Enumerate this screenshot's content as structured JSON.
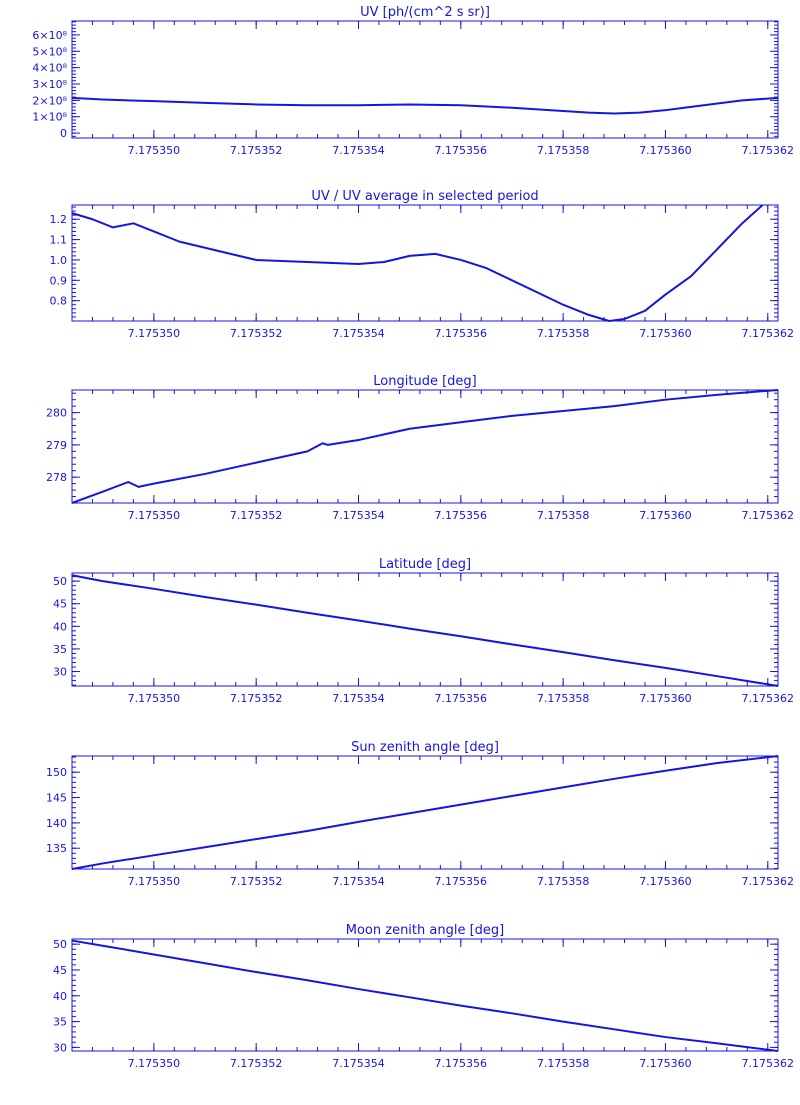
{
  "colors": {
    "plot": "#1515e0",
    "background": "#ffffff"
  },
  "chart_data": [
    {
      "type": "line",
      "title": "UV [ph/(cm^2 s sr)]",
      "xlim": [
        7.1753484,
        7.1753622
      ],
      "ylim": [
        -0.3,
        6.85
      ],
      "x_ticks": [
        7.17535,
        7.175352,
        7.175354,
        7.175356,
        7.175358,
        7.17536,
        7.175362
      ],
      "x_ticklabels": [
        "7.175350",
        "7.175352",
        "7.175354",
        "7.175356",
        "7.175358",
        "7.175360",
        "7.175362"
      ],
      "y_ticks": [
        0,
        1,
        2,
        3,
        4,
        5,
        6
      ],
      "y_ticklabels": [
        "0",
        "1×10⁸",
        "2×10⁸",
        "3×10⁸",
        "4×10⁸",
        "5×10⁸",
        "6×10⁸"
      ],
      "y_unit_scale": "1e8",
      "series": [
        {
          "x": [
            7.1753484,
            7.175349,
            7.17535,
            7.175351,
            7.175352,
            7.175353,
            7.175354,
            7.175355,
            7.175356,
            7.175357,
            7.175358,
            7.1753585,
            7.175359,
            7.1753595,
            7.17536,
            7.1753605,
            7.175361,
            7.1753615,
            7.1753622
          ],
          "y": [
            2.15,
            2.05,
            1.95,
            1.85,
            1.75,
            1.7,
            1.7,
            1.75,
            1.7,
            1.55,
            1.35,
            1.25,
            1.2,
            1.25,
            1.4,
            1.6,
            1.8,
            2.0,
            2.15
          ]
        }
      ]
    },
    {
      "type": "line",
      "title": "UV / UV average in selected period",
      "xlim": [
        7.1753484,
        7.1753622
      ],
      "ylim": [
        0.7,
        1.27
      ],
      "x_ticks": [
        7.17535,
        7.175352,
        7.175354,
        7.175356,
        7.175358,
        7.17536,
        7.175362
      ],
      "x_ticklabels": [
        "7.175350",
        "7.175352",
        "7.175354",
        "7.175356",
        "7.175358",
        "7.175360",
        "7.175362"
      ],
      "y_ticks": [
        0.8,
        0.9,
        1.0,
        1.1,
        1.2
      ],
      "y_ticklabels": [
        "0.8",
        "0.9",
        "1.0",
        "1.1",
        "1.2"
      ],
      "series": [
        {
          "x": [
            7.1753484,
            7.1753488,
            7.1753492,
            7.1753496,
            7.17535,
            7.1753505,
            7.175351,
            7.1753515,
            7.175352,
            7.175353,
            7.175354,
            7.1753545,
            7.175355,
            7.1753555,
            7.175356,
            7.1753565,
            7.175357,
            7.1753575,
            7.175358,
            7.1753585,
            7.1753589,
            7.1753592,
            7.1753596,
            7.17536,
            7.1753605,
            7.175361,
            7.1753615,
            7.1753619
          ],
          "y": [
            1.23,
            1.2,
            1.16,
            1.18,
            1.14,
            1.09,
            1.06,
            1.03,
            1.0,
            0.99,
            0.98,
            0.99,
            1.02,
            1.03,
            1.0,
            0.96,
            0.9,
            0.84,
            0.78,
            0.73,
            0.7,
            0.71,
            0.75,
            0.83,
            0.92,
            1.05,
            1.18,
            1.27
          ]
        }
      ]
    },
    {
      "type": "line",
      "title": "Longitude [deg]",
      "xlim": [
        7.1753484,
        7.1753622
      ],
      "ylim": [
        277.2,
        280.7
      ],
      "x_ticks": [
        7.17535,
        7.175352,
        7.175354,
        7.175356,
        7.175358,
        7.17536,
        7.175362
      ],
      "x_ticklabels": [
        "7.175350",
        "7.175352",
        "7.175354",
        "7.175356",
        "7.175358",
        "7.175360",
        "7.175362"
      ],
      "y_ticks": [
        278,
        279,
        280
      ],
      "y_ticklabels": [
        "278",
        "279",
        "280"
      ],
      "series": [
        {
          "x": [
            7.1753484,
            7.175349,
            7.1753495,
            7.1753497,
            7.17535,
            7.175351,
            7.175352,
            7.175353,
            7.1753533,
            7.1753534,
            7.175354,
            7.175355,
            7.175356,
            7.175357,
            7.175358,
            7.175359,
            7.17536,
            7.175361,
            7.1753622
          ],
          "y": [
            277.2,
            277.55,
            277.85,
            277.7,
            277.8,
            278.1,
            278.45,
            278.8,
            279.05,
            279.0,
            279.15,
            279.5,
            279.7,
            279.9,
            280.05,
            280.2,
            280.4,
            280.55,
            280.7
          ]
        }
      ]
    },
    {
      "type": "line",
      "title": "Latitude [deg]",
      "xlim": [
        7.1753484,
        7.1753622
      ],
      "ylim": [
        26.8,
        51.8
      ],
      "x_ticks": [
        7.17535,
        7.175352,
        7.175354,
        7.175356,
        7.175358,
        7.17536,
        7.175362
      ],
      "x_ticklabels": [
        "7.175350",
        "7.175352",
        "7.175354",
        "7.175356",
        "7.175358",
        "7.175360",
        "7.175362"
      ],
      "y_ticks": [
        30,
        35,
        40,
        45,
        50
      ],
      "y_ticklabels": [
        "30",
        "35",
        "40",
        "45",
        "50"
      ],
      "series": [
        {
          "x": [
            7.1753484,
            7.175349,
            7.17535,
            7.175351,
            7.175352,
            7.175353,
            7.175354,
            7.175355,
            7.175356,
            7.175357,
            7.175358,
            7.175359,
            7.17536,
            7.175361,
            7.1753622
          ],
          "y": [
            51.3,
            50.0,
            48.3,
            46.5,
            44.8,
            43.0,
            41.3,
            39.5,
            37.8,
            36.0,
            34.3,
            32.5,
            30.8,
            29.0,
            26.8
          ]
        }
      ]
    },
    {
      "type": "line",
      "title": "Sun zenith angle [deg]",
      "xlim": [
        7.1753484,
        7.1753622
      ],
      "ylim": [
        130.9,
        153.2
      ],
      "x_ticks": [
        7.17535,
        7.175352,
        7.175354,
        7.175356,
        7.175358,
        7.17536,
        7.175362
      ],
      "x_ticklabels": [
        "7.175350",
        "7.175352",
        "7.175354",
        "7.175356",
        "7.175358",
        "7.175360",
        "7.175362"
      ],
      "y_ticks": [
        135,
        140,
        145,
        150
      ],
      "y_ticklabels": [
        "135",
        "140",
        "145",
        "150"
      ],
      "series": [
        {
          "x": [
            7.1753484,
            7.175349,
            7.17535,
            7.175351,
            7.175352,
            7.175353,
            7.175354,
            7.175355,
            7.175356,
            7.175357,
            7.175358,
            7.175359,
            7.17536,
            7.175361,
            7.1753622
          ],
          "y": [
            130.9,
            132.0,
            133.6,
            135.2,
            136.8,
            138.4,
            140.2,
            141.9,
            143.6,
            145.3,
            147.0,
            148.7,
            150.3,
            151.8,
            153.2
          ]
        }
      ]
    },
    {
      "type": "line",
      "title": "Moon zenith angle [deg]",
      "xlim": [
        7.1753484,
        7.1753622
      ],
      "ylim": [
        29.3,
        51.0
      ],
      "x_ticks": [
        7.17535,
        7.175352,
        7.175354,
        7.175356,
        7.175358,
        7.17536,
        7.175362
      ],
      "x_ticklabels": [
        "7.175350",
        "7.175352",
        "7.175354",
        "7.175356",
        "7.175358",
        "7.175360",
        "7.175362"
      ],
      "y_ticks": [
        30,
        35,
        40,
        45,
        50
      ],
      "y_ticklabels": [
        "30",
        "35",
        "40",
        "45",
        "50"
      ],
      "series": [
        {
          "x": [
            7.1753484,
            7.175349,
            7.17535,
            7.175351,
            7.175352,
            7.175353,
            7.175354,
            7.175355,
            7.175356,
            7.175357,
            7.175358,
            7.175359,
            7.17536,
            7.175361,
            7.1753622
          ],
          "y": [
            50.7,
            49.7,
            48.0,
            46.3,
            44.6,
            43.0,
            41.3,
            39.7,
            38.1,
            36.6,
            35.0,
            33.5,
            32.0,
            30.8,
            29.3
          ]
        }
      ]
    }
  ]
}
